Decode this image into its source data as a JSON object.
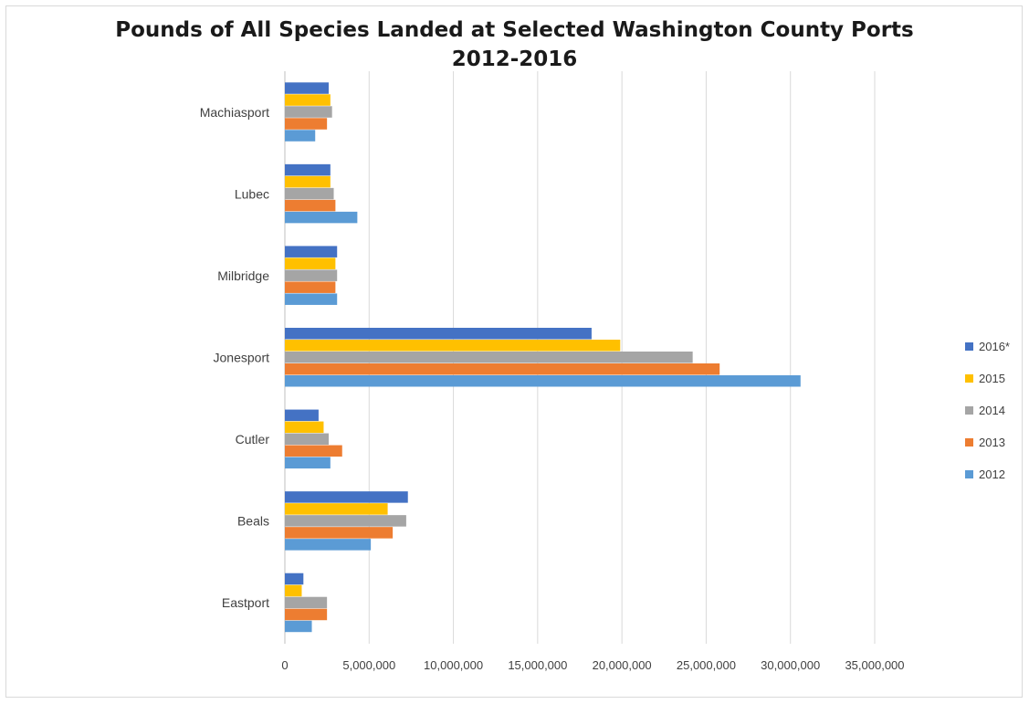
{
  "chart_data": {
    "type": "bar",
    "orientation": "horizontal",
    "title": "Pounds of All Species Landed at Selected Washington County Ports",
    "subtitle": "2012-2016",
    "xlabel": "",
    "ylabel": "",
    "xlim": [
      0,
      35000000
    ],
    "x_ticks": [
      0,
      5000000,
      10000000,
      15000000,
      20000000,
      25000000,
      30000000,
      35000000
    ],
    "x_tick_labels": [
      "0",
      "5,000,000",
      "10,000,000",
      "15,000,000",
      "20,000,000",
      "25,000,000",
      "30,000,000",
      "35,000,000"
    ],
    "grid": "vertical",
    "legend_position": "right",
    "categories": [
      "Machiasport",
      "Lubec",
      "Milbridge",
      "Jonesport",
      "Cutler",
      "Beals",
      "Eastport"
    ],
    "series": [
      {
        "name": "2016*",
        "color": "#4472c4",
        "values": [
          2600000,
          2700000,
          3100000,
          18200000,
          2000000,
          7300000,
          1100000
        ]
      },
      {
        "name": "2015",
        "color": "#ffc000",
        "values": [
          2700000,
          2700000,
          3000000,
          19900000,
          2300000,
          6100000,
          1000000
        ]
      },
      {
        "name": "2014",
        "color": "#a5a5a5",
        "values": [
          2800000,
          2900000,
          3100000,
          24200000,
          2600000,
          7200000,
          2500000
        ]
      },
      {
        "name": "2013",
        "color": "#ed7d31",
        "values": [
          2500000,
          3000000,
          3000000,
          25800000,
          3400000,
          6400000,
          2500000
        ]
      },
      {
        "name": "2012",
        "color": "#5b9bd5",
        "values": [
          1800000,
          4300000,
          3100000,
          30600000,
          2700000,
          5100000,
          1600000
        ]
      }
    ]
  }
}
